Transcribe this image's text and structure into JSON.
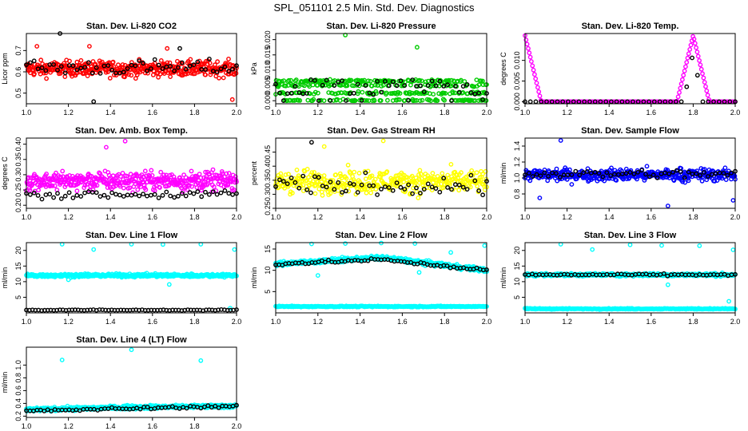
{
  "title": "SPL_051101  2.5 Min. Std. Dev. Diagnostics",
  "chart_data": [
    {
      "type": "scatter",
      "id": "co2",
      "title": "Stan. Dev. Li-820 CO2",
      "xlabel": "",
      "ylabel": "Licor ppm",
      "xlim": [
        1.0,
        2.0
      ],
      "ylim": [
        0.45,
        0.78
      ],
      "xticks": [
        1.0,
        1.2,
        1.4,
        1.6,
        1.8,
        2.0
      ],
      "xtick_labels": [
        "1.0",
        "1.2",
        "1.4",
        "1.6",
        "1.8",
        "2.0"
      ],
      "yticks": [
        0.5,
        0.6,
        0.7
      ],
      "ytick_labels": [
        "0.5",
        "0.6",
        "0.7"
      ],
      "series": [
        {
          "color": "#ff0000",
          "kind": "band",
          "n": 420,
          "center": 0.615,
          "spread": 0.07,
          "outliers": [
            [
              1.05,
              0.72
            ],
            [
              1.3,
              0.72
            ],
            [
              1.67,
              0.71
            ],
            [
              1.98,
              0.47
            ]
          ]
        },
        {
          "color": "#000000",
          "kind": "band",
          "n": 55,
          "center": 0.62,
          "spread": 0.07,
          "outliers": [
            [
              1.16,
              0.78
            ],
            [
              1.32,
              0.46
            ],
            [
              1.73,
              0.71
            ]
          ]
        }
      ]
    },
    {
      "type": "scatter",
      "id": "pressure",
      "title": "Stan. Dev. Li-820 Pressure",
      "xlabel": "",
      "ylabel": "kPa",
      "xlim": [
        1.0,
        2.0
      ],
      "ylim": [
        -0.001,
        0.022
      ],
      "xticks": [
        1.0,
        1.2,
        1.4,
        1.6,
        1.8,
        2.0
      ],
      "xtick_labels": [
        "1.0",
        "1.2",
        "1.4",
        "1.6",
        "1.8",
        "2.0"
      ],
      "yticks": [
        0.0,
        0.005,
        0.01,
        0.015,
        0.02
      ],
      "ytick_labels": [
        "0.000",
        "0.005",
        "0.010",
        "0.015",
        "0.020"
      ],
      "series": [
        {
          "color": "#00cc00",
          "kind": "levels",
          "n": 420,
          "levels": [
            0.0,
            0.0025,
            0.005,
            0.0065
          ],
          "jitter": 0.0004,
          "outliers": [
            [
              1.33,
              0.0215
            ],
            [
              1.67,
              0.0175
            ]
          ]
        },
        {
          "color": "#000000",
          "kind": "levels",
          "n": 55,
          "levels": [
            0.0,
            0.0025,
            0.005,
            0.0065
          ],
          "jitter": 0.0004,
          "outliers": []
        }
      ]
    },
    {
      "type": "scatter",
      "id": "temp",
      "title": "Stan. Dev. Li-820 Temp.",
      "xlabel": "",
      "ylabel": "degrees C",
      "xlim": [
        1.0,
        2.0
      ],
      "ylim": [
        -0.0005,
        0.0165
      ],
      "xticks": [
        1.0,
        1.2,
        1.4,
        1.6,
        1.8,
        2.0
      ],
      "xtick_labels": [
        "1.0",
        "1.2",
        "1.4",
        "1.6",
        "1.8",
        "2.0"
      ],
      "yticks": [
        0.0,
        0.005,
        0.01
      ],
      "ytick_labels": [
        "0.000",
        "0.005",
        "0.010"
      ],
      "series": [
        {
          "color": "#ff00ff",
          "kind": "curve",
          "n": 200,
          "baseline": 0.0,
          "peaks": [
            [
              1.0,
              0.016,
              0.035
            ],
            [
              1.8,
              0.016,
              0.035
            ]
          ]
        },
        {
          "color": "#000000",
          "kind": "curve",
          "n": 40,
          "baseline": 0.0,
          "peaks": [
            [
              1.8,
              0.012,
              0.02
            ]
          ]
        }
      ]
    },
    {
      "type": "scatter",
      "id": "ambbox",
      "title": "Stan. Dev. Amb. Box Temp.",
      "xlabel": "",
      "ylabel": "degrees C",
      "xlim": [
        1.0,
        2.0
      ],
      "ylim": [
        0.19,
        0.42
      ],
      "xticks": [
        1.0,
        1.2,
        1.4,
        1.6,
        1.8,
        2.0
      ],
      "xtick_labels": [
        "1.0",
        "1.2",
        "1.4",
        "1.6",
        "1.8",
        "2.0"
      ],
      "yticks": [
        0.2,
        0.25,
        0.3,
        0.35,
        0.4
      ],
      "ytick_labels": [
        "0.20",
        "0.25",
        "0.30",
        "0.35",
        "0.40"
      ],
      "series": [
        {
          "color": "#ff00ff",
          "kind": "band",
          "n": 420,
          "center": 0.28,
          "spread": 0.06,
          "outliers": [
            [
              1.47,
              0.41
            ],
            [
              1.38,
              0.39
            ]
          ]
        },
        {
          "color": "#000000",
          "kind": "band",
          "n": 55,
          "center": 0.235,
          "spread": 0.025,
          "outliers": []
        }
      ]
    },
    {
      "type": "scatter",
      "id": "rh",
      "title": "Stan. Dev. Gas Stream RH",
      "xlabel": "",
      "ylabel": "percent",
      "xlim": [
        1.0,
        2.0
      ],
      "ylim": [
        0.25,
        0.5
      ],
      "xticks": [
        1.0,
        1.2,
        1.4,
        1.6,
        1.8,
        2.0
      ],
      "xtick_labels": [
        "1.0",
        "1.2",
        "1.4",
        "1.6",
        "1.8",
        "2.0"
      ],
      "yticks": [
        0.25,
        0.3,
        0.35,
        0.4,
        0.45
      ],
      "ytick_labels": [
        "0.25",
        "0.30",
        "0.35",
        "0.40",
        "0.45"
      ],
      "series": [
        {
          "color": "#ffff00",
          "kind": "band",
          "n": 380,
          "center": 0.345,
          "spread": 0.08,
          "outliers": [
            [
              1.51,
              0.49
            ],
            [
              1.23,
              0.47
            ]
          ]
        },
        {
          "color": "#000000",
          "kind": "band",
          "n": 55,
          "center": 0.33,
          "spread": 0.07,
          "outliers": [
            [
              1.17,
              0.485
            ]
          ]
        }
      ]
    },
    {
      "type": "scatter",
      "id": "sampleflow",
      "title": "Stan. Dev. Sample Flow",
      "xlabel": "",
      "ylabel": "ml/min",
      "xlim": [
        1.0,
        2.0
      ],
      "ylim": [
        0.62,
        1.5
      ],
      "xticks": [
        1.0,
        1.2,
        1.4,
        1.6,
        1.8,
        2.0
      ],
      "xtick_labels": [
        "1.0",
        "1.2",
        "1.4",
        "1.6",
        "1.8",
        "2.0"
      ],
      "yticks": [
        0.8,
        1.0,
        1.2,
        1.4
      ],
      "ytick_labels": [
        "0.8",
        "1.0",
        "1.2",
        "1.4"
      ],
      "series": [
        {
          "color": "#0000ff",
          "kind": "band",
          "n": 420,
          "center": 1.04,
          "spread": 0.15,
          "outliers": [
            [
              1.17,
              1.47
            ],
            [
              1.68,
              0.65
            ],
            [
              1.99,
              0.72
            ],
            [
              1.07,
              0.75
            ]
          ]
        },
        {
          "color": "#000000",
          "kind": "band",
          "n": 55,
          "center": 1.05,
          "spread": 0.1,
          "outliers": []
        }
      ]
    },
    {
      "type": "scatter",
      "id": "line1",
      "title": "Stan. Dev. Line 1 Flow",
      "xlabel": "",
      "ylabel": "ml/min",
      "xlim": [
        1.0,
        2.0
      ],
      "ylim": [
        0.0,
        22.5
      ],
      "xticks": [
        1.0,
        1.2,
        1.4,
        1.6,
        1.8,
        2.0
      ],
      "xtick_labels": [
        "1.0",
        "1.2",
        "1.4",
        "1.6",
        "1.8",
        "2.0"
      ],
      "yticks": [
        5,
        10,
        15,
        20
      ],
      "ytick_labels": [
        "5",
        "10",
        "15",
        "20"
      ],
      "series": [
        {
          "color": "#00ffff",
          "kind": "band",
          "n": 420,
          "center": 12.0,
          "spread": 1.0,
          "outliers": [
            [
              1.17,
              22
            ],
            [
              1.32,
              20.3
            ],
            [
              1.5,
              22
            ],
            [
              1.65,
              21.9
            ],
            [
              1.83,
              22
            ],
            [
              1.99,
              20.3
            ],
            [
              1.68,
              9.1
            ],
            [
              1.2,
              10.6
            ],
            [
              1.97,
              1.5
            ]
          ]
        },
        {
          "color": "#000000",
          "kind": "band",
          "n": 70,
          "center": 0.9,
          "spread": 0.25,
          "outliers": []
        }
      ]
    },
    {
      "type": "scatter",
      "id": "line2",
      "title": "Stan. Dev. Line 2 Flow",
      "xlabel": "",
      "ylabel": "ml/min",
      "xlim": [
        1.0,
        2.0
      ],
      "ylim": [
        0.0,
        16.5
      ],
      "xticks": [
        1.0,
        1.2,
        1.4,
        1.6,
        1.8,
        2.0
      ],
      "xtick_labels": [
        "1.0",
        "1.2",
        "1.4",
        "1.6",
        "1.8",
        "2.0"
      ],
      "yticks": [
        5,
        10,
        15
      ],
      "ytick_labels": [
        "5",
        "10",
        "15"
      ],
      "series": [
        {
          "color": "#00ffff",
          "kind": "hump",
          "n": 420,
          "start": 11.5,
          "peak": 13.0,
          "end": 10.0,
          "spread": 1.2,
          "outliers": [
            [
              1.17,
              16.2
            ],
            [
              1.33,
              16.3
            ],
            [
              1.5,
              16.4
            ],
            [
              1.66,
              16.3
            ],
            [
              1.83,
              14.2
            ],
            [
              1.99,
              15.8
            ],
            [
              1.2,
              8.8
            ],
            [
              1.68,
              9.5
            ]
          ]
        },
        {
          "color": "#00ffff",
          "kind": "band",
          "n": 300,
          "center": 1.5,
          "spread": 0.25,
          "outliers": []
        },
        {
          "color": "#000000",
          "kind": "hump",
          "n": 65,
          "start": 11.5,
          "peak": 12.5,
          "end": 10.0,
          "spread": 0.8,
          "outliers": []
        }
      ]
    },
    {
      "type": "scatter",
      "id": "line3",
      "title": "Stan. Dev. Line 3 Flow",
      "xlabel": "",
      "ylabel": "ml/min",
      "xlim": [
        1.0,
        2.0
      ],
      "ylim": [
        0.0,
        22.5
      ],
      "xticks": [
        1.0,
        1.2,
        1.4,
        1.6,
        1.8,
        2.0
      ],
      "xtick_labels": [
        "1.0",
        "1.2",
        "1.4",
        "1.6",
        "1.8",
        "2.0"
      ],
      "yticks": [
        5,
        10,
        15,
        20
      ],
      "ytick_labels": [
        "5",
        "10",
        "15",
        "20"
      ],
      "series": [
        {
          "color": "#00ffff",
          "kind": "band",
          "n": 420,
          "center": 12.2,
          "spread": 0.9,
          "outliers": [
            [
              1.17,
              22
            ],
            [
              1.32,
              20.3
            ],
            [
              1.5,
              21.8
            ],
            [
              1.65,
              21.6
            ],
            [
              1.83,
              21.5
            ],
            [
              1.99,
              20.2
            ],
            [
              1.68,
              9.0
            ],
            [
              1.97,
              3.7
            ]
          ]
        },
        {
          "color": "#00ffff",
          "kind": "band",
          "n": 300,
          "center": 1.3,
          "spread": 0.3,
          "outliers": []
        },
        {
          "color": "#000000",
          "kind": "band",
          "n": 60,
          "center": 12.2,
          "spread": 0.6,
          "outliers": []
        }
      ]
    },
    {
      "type": "scatter",
      "id": "line4",
      "title": "Stan. Dev. Line 4 (LT) Flow",
      "xlabel": "",
      "ylabel": "ml/min",
      "xlim": [
        1.0,
        2.0
      ],
      "ylim": [
        0.18,
        1.28
      ],
      "xticks": [
        1.0,
        1.2,
        1.4,
        1.6,
        1.8,
        2.0
      ],
      "xtick_labels": [
        "1.0",
        "1.2",
        "1.4",
        "1.6",
        "1.8",
        "2.0"
      ],
      "yticks": [
        0.2,
        0.4,
        0.6,
        0.8,
        1.0
      ],
      "ytick_labels": [
        "0.2",
        "0.4",
        "0.6",
        "0.8",
        "1.0"
      ],
      "series": [
        {
          "color": "#00ffff",
          "kind": "hump",
          "n": 420,
          "start": 0.3,
          "peak": 0.34,
          "end": 0.36,
          "spread": 0.07,
          "outliers": [
            [
              1.17,
              1.08
            ],
            [
              1.5,
              1.24
            ],
            [
              1.83,
              1.07
            ]
          ]
        },
        {
          "color": "#000000",
          "kind": "hump",
          "n": 60,
          "start": 0.28,
          "peak": 0.32,
          "end": 0.36,
          "spread": 0.05,
          "outliers": []
        }
      ]
    }
  ]
}
